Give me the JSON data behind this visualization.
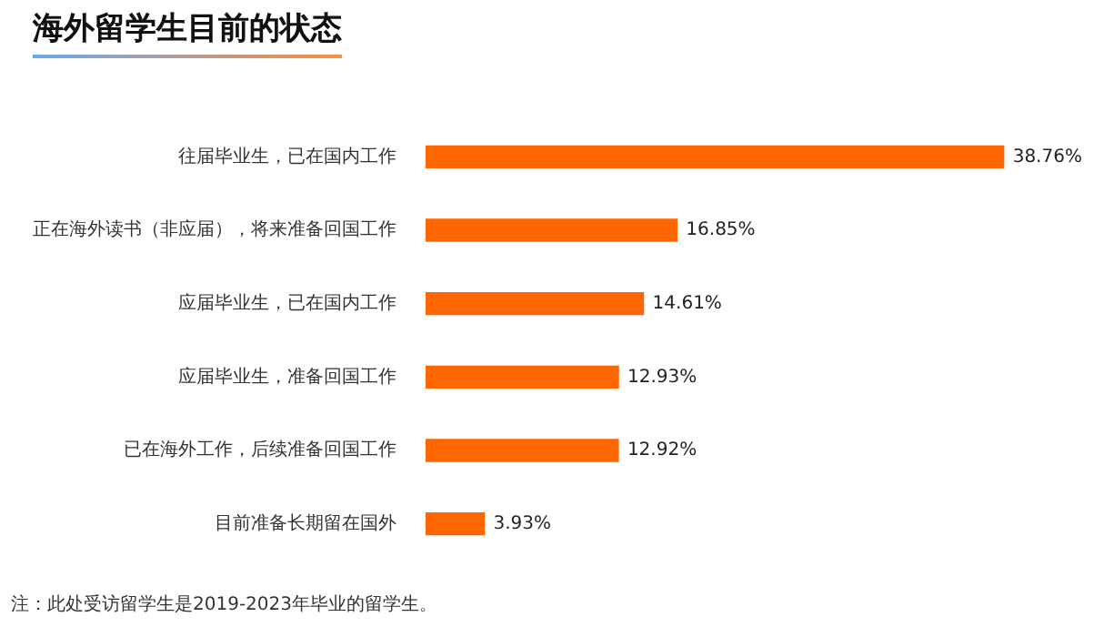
{
  "chart_data": {
    "type": "bar",
    "orientation": "horizontal",
    "title": "海外留学生目前的状态",
    "categories": [
      "往届毕业生，已在国内工作",
      "正在海外读书（非应届），将来准备回国工作",
      "应届毕业生，已在国内工作",
      "应届毕业生，准备回国工作",
      "已在海外工作，后续准备回国工作",
      "目前准备长期留在国外"
    ],
    "values": [
      38.76,
      16.85,
      14.61,
      12.93,
      12.92,
      3.93
    ],
    "value_labels": [
      "38.76%",
      "16.85%",
      "14.61%",
      "12.93%",
      "12.92%",
      "3.93%"
    ],
    "color": "#ff6600",
    "annotations": [
      "注：此处受访留学生是2019-2023年毕业的留学生。"
    ]
  }
}
